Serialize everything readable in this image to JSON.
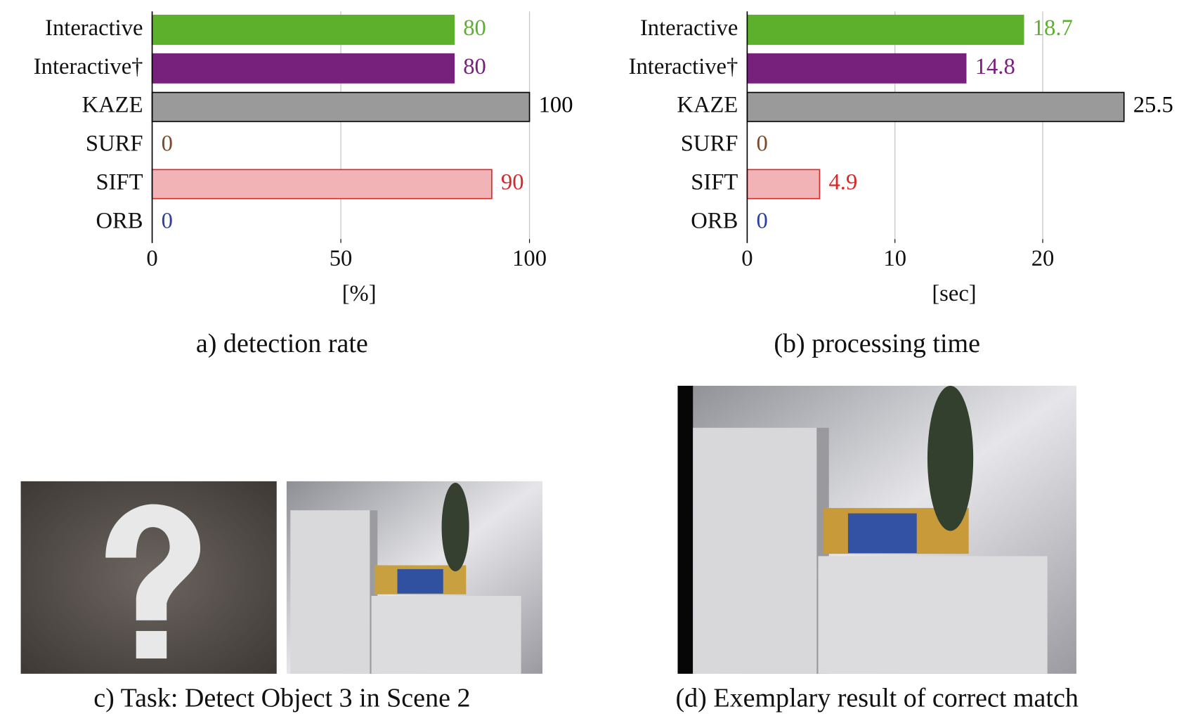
{
  "chart_data": [
    {
      "type": "barh",
      "caption": "a) detection rate",
      "xlabel": "[%]",
      "categories": [
        "Interactive",
        "Interactive†",
        "KAZE",
        "SURF",
        "SIFT",
        "ORB"
      ],
      "values": [
        80,
        80,
        100,
        0,
        90,
        0
      ],
      "colors": [
        "#5cb02c",
        "#77207c",
        "#9a9a9a",
        "#7a4a2a",
        "#f2b3b6",
        "#2f3f9f"
      ],
      "edge_colors": [
        "#5cb02c",
        "#77207c",
        "#000000",
        "#7a4a2a",
        "#d42a2a",
        "#2f3f9f"
      ],
      "xlim": [
        0,
        100
      ],
      "xticks": [
        0,
        50,
        100
      ],
      "grid": true
    },
    {
      "type": "barh",
      "caption": "(b) processing time",
      "xlabel": "[sec]",
      "categories": [
        "Interactive",
        "Interactive†",
        "KAZE",
        "SURF",
        "SIFT",
        "ORB"
      ],
      "values": [
        18.7,
        14.8,
        25.5,
        0,
        4.9,
        0
      ],
      "colors": [
        "#5cb02c",
        "#77207c",
        "#9a9a9a",
        "#7a4a2a",
        "#f2b3b6",
        "#2f3f9f"
      ],
      "edge_colors": [
        "#5cb02c",
        "#77207c",
        "#000000",
        "#7a4a2a",
        "#d42a2a",
        "#2f3f9f"
      ],
      "xlim": [
        0,
        26
      ],
      "xticks": [
        0,
        10,
        20
      ],
      "grid": true
    }
  ],
  "panels": [
    {
      "caption": "c) Task: Detect Object 3 in Scene 2"
    },
    {
      "caption": "(d) Exemplary result of correct match"
    }
  ]
}
